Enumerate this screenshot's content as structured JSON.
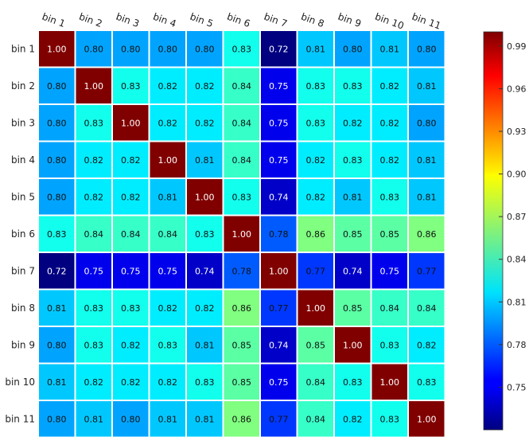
{
  "chart_data": {
    "type": "heatmap",
    "rows": [
      "bin 1",
      "bin 2",
      "bin 3",
      "bin 4",
      "bin 5",
      "bin 6",
      "bin 7",
      "bin 8",
      "bin 9",
      "bin 10",
      "bin 11"
    ],
    "cols": [
      "bin 1",
      "bin 2",
      "bin 3",
      "bin 4",
      "bin 5",
      "bin 6",
      "bin 7",
      "bin 8",
      "bin 9",
      "bin 10",
      "bin 11"
    ],
    "values": [
      [
        1.0,
        0.8,
        0.8,
        0.8,
        0.8,
        0.83,
        0.72,
        0.81,
        0.8,
        0.81,
        0.8
      ],
      [
        0.8,
        1.0,
        0.83,
        0.82,
        0.82,
        0.84,
        0.75,
        0.83,
        0.83,
        0.82,
        0.81
      ],
      [
        0.8,
        0.83,
        1.0,
        0.82,
        0.82,
        0.84,
        0.75,
        0.83,
        0.82,
        0.82,
        0.8
      ],
      [
        0.8,
        0.82,
        0.82,
        1.0,
        0.81,
        0.84,
        0.75,
        0.82,
        0.83,
        0.82,
        0.81
      ],
      [
        0.8,
        0.82,
        0.82,
        0.81,
        1.0,
        0.83,
        0.74,
        0.82,
        0.81,
        0.83,
        0.81
      ],
      [
        0.83,
        0.84,
        0.84,
        0.84,
        0.83,
        1.0,
        0.78,
        0.86,
        0.85,
        0.85,
        0.86
      ],
      [
        0.72,
        0.75,
        0.75,
        0.75,
        0.74,
        0.78,
        1.0,
        0.77,
        0.74,
        0.75,
        0.77
      ],
      [
        0.81,
        0.83,
        0.83,
        0.82,
        0.82,
        0.86,
        0.77,
        1.0,
        0.85,
        0.84,
        0.84
      ],
      [
        0.8,
        0.83,
        0.82,
        0.83,
        0.81,
        0.85,
        0.74,
        0.85,
        1.0,
        0.83,
        0.82
      ],
      [
        0.81,
        0.82,
        0.82,
        0.82,
        0.83,
        0.85,
        0.75,
        0.84,
        0.83,
        1.0,
        0.83
      ],
      [
        0.8,
        0.81,
        0.8,
        0.81,
        0.81,
        0.86,
        0.77,
        0.84,
        0.82,
        0.83,
        1.0
      ]
    ],
    "value_format": "2-decimal",
    "colormap": "jet",
    "color_range": [
      0.72,
      1.0
    ],
    "colorbar_ticks": [
      "0.75",
      "0.78",
      "0.81",
      "0.84",
      "0.87",
      "0.90",
      "0.93",
      "0.96",
      "0.99"
    ],
    "grid": true,
    "grid_color": "#ffffff"
  }
}
